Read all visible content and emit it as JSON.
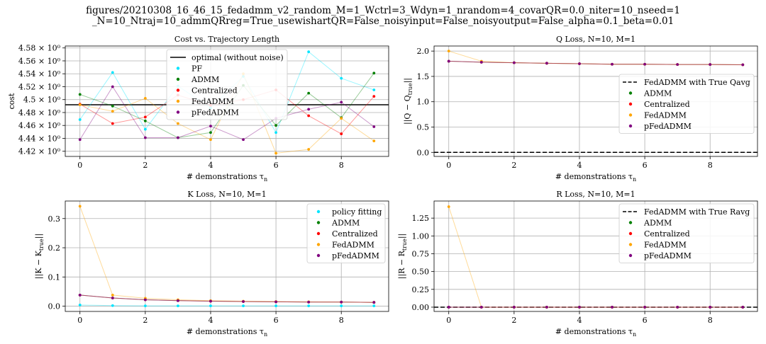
{
  "suptitle": {
    "line1": "figures/20210308_16_46_15_fedadmm_v2_random_M=1_Wctrl=3_Wdyn=1_nrandom=4_covarQR=0.0_niter=10_nseed=1",
    "line2": "_N=10_Ntraj=10_admmQRreg=True_usewishartQR=False_noisyinput=False_noisyoutput=False_alpha=0.1_beta=0.01"
  },
  "colors": {
    "PF": "#00e5ff",
    "ADMM": "#008000",
    "Centralized": "#ff0000",
    "FedADMM": "#ffa500",
    "pFedADMM": "#800080",
    "optimal": "#000000",
    "grid": "#b0b0b0"
  },
  "chart_data": [
    {
      "type": "line",
      "title": "Cost vs. Trajectory Length",
      "xlabel": "# demonstrations τn",
      "ylabel": "cost",
      "xlim": [
        -0.45,
        9.45
      ],
      "ylim": [
        4.412,
        4.583
      ],
      "xticks": [
        0,
        2,
        4,
        6,
        8
      ],
      "xtick_labels": [
        "0",
        "2",
        "4",
        "6",
        "8"
      ],
      "yticks": [
        4.42,
        4.44,
        4.46,
        4.48,
        4.5,
        4.52,
        4.54,
        4.56,
        4.58
      ],
      "ytick_labels": [
        "4.42 × 10⁰",
        "4.44 × 10⁰",
        "4.46 × 10⁰",
        "4.48 × 10⁰",
        "4.5 × 10⁰",
        "4.52 × 10⁰",
        "4.54 × 10⁰",
        "4.56 × 10⁰",
        "4.58 × 10⁰"
      ],
      "grid": true,
      "legend_position": "upper-center",
      "hline": {
        "y": 4.492,
        "name": "optimal (without noise)",
        "color_key": "optimal",
        "style": "solid"
      },
      "x": [
        0,
        1,
        2,
        3,
        4,
        5,
        6,
        7,
        8,
        9
      ],
      "series": [
        {
          "name": "PF",
          "color_key": "PF",
          "values": [
            4.469,
            4.542,
            4.454,
            4.521,
            4.487,
            4.536,
            4.449,
            4.574,
            4.533,
            4.515
          ]
        },
        {
          "name": "ADMM",
          "color_key": "ADMM",
          "values": [
            4.508,
            4.49,
            4.467,
            4.441,
            4.449,
            4.522,
            4.46,
            4.51,
            4.472,
            4.541
          ]
        },
        {
          "name": "Centralized",
          "color_key": "Centralized",
          "values": [
            4.493,
            4.463,
            4.473,
            4.507,
            4.491,
            4.5,
            4.515,
            4.475,
            4.447,
            4.505
          ]
        },
        {
          "name": "FedADMM",
          "color_key": "FedADMM",
          "values": [
            4.492,
            4.482,
            4.502,
            4.463,
            4.438,
            4.54,
            4.417,
            4.423,
            4.471,
            4.436
          ]
        },
        {
          "name": "pFedADMM",
          "color_key": "pFedADMM",
          "values": [
            4.438,
            4.52,
            4.441,
            4.441,
            4.459,
            4.438,
            4.471,
            4.485,
            4.496,
            4.458
          ]
        }
      ]
    },
    {
      "type": "line",
      "title": "Q Loss, N=10, M=1",
      "xlabel": "# demonstrations τn",
      "ylabel": "||Q − Qtrue||",
      "xlim": [
        -0.45,
        9.45
      ],
      "ylim": [
        -0.08,
        2.1
      ],
      "xticks": [
        0,
        2,
        4,
        6,
        8
      ],
      "xtick_labels": [
        "0",
        "2",
        "4",
        "6",
        "8"
      ],
      "yticks": [
        0,
        0.5,
        1,
        1.5,
        2
      ],
      "ytick_labels": [
        "0.0",
        "0.5",
        "1.0",
        "1.5",
        "2.0"
      ],
      "grid": true,
      "legend_position": "center-right",
      "hline": {
        "y": 0,
        "name": "FedADMM with True Qavg",
        "color_key": "optimal",
        "style": "dashed"
      },
      "x": [
        0,
        1,
        2,
        3,
        4,
        5,
        6,
        7,
        8,
        9
      ],
      "series": [
        {
          "name": "ADMM",
          "color_key": "ADMM",
          "values": [
            1.8,
            1.78,
            1.77,
            1.76,
            1.75,
            1.74,
            1.74,
            1.735,
            1.735,
            1.73
          ]
        },
        {
          "name": "Centralized",
          "color_key": "Centralized",
          "values": [
            1.8,
            1.78,
            1.77,
            1.76,
            1.75,
            1.74,
            1.74,
            1.735,
            1.735,
            1.73
          ]
        },
        {
          "name": "FedADMM",
          "color_key": "FedADMM",
          "values": [
            2.0,
            1.8,
            1.77,
            1.76,
            1.75,
            1.74,
            1.74,
            1.735,
            1.735,
            1.73
          ]
        },
        {
          "name": "pFedADMM",
          "color_key": "pFedADMM",
          "values": [
            1.8,
            1.78,
            1.77,
            1.76,
            1.75,
            1.74,
            1.74,
            1.735,
            1.735,
            1.73
          ]
        }
      ]
    },
    {
      "type": "line",
      "title": "K Loss, N=10, M=1",
      "xlabel": "# demonstrations τn",
      "ylabel": "||K − Ktrue||",
      "xlim": [
        -0.45,
        9.45
      ],
      "ylim": [
        -0.018,
        0.36
      ],
      "xticks": [
        0,
        2,
        4,
        6,
        8
      ],
      "xtick_labels": [
        "0",
        "2",
        "4",
        "6",
        "8"
      ],
      "yticks": [
        0,
        0.1,
        0.2,
        0.3
      ],
      "ytick_labels": [
        "0.0",
        "0.1",
        "0.2",
        "0.3"
      ],
      "grid": true,
      "legend_position": "upper-right",
      "x": [
        0,
        1,
        2,
        3,
        4,
        5,
        6,
        7,
        8,
        9
      ],
      "series": [
        {
          "name": "policy fitting",
          "color_key": "PF",
          "values": [
            0.004,
            0.002,
            0.001,
            0.001,
            0.001,
            0.001,
            0.001,
            0.001,
            0.001,
            0.001
          ]
        },
        {
          "name": "ADMM",
          "color_key": "ADMM",
          "values": [
            0.038,
            0.028,
            0.022,
            0.019,
            0.017,
            0.016,
            0.015,
            0.014,
            0.014,
            0.013
          ]
        },
        {
          "name": "Centralized",
          "color_key": "Centralized",
          "values": [
            0.038,
            0.028,
            0.022,
            0.019,
            0.017,
            0.016,
            0.015,
            0.014,
            0.014,
            0.013
          ]
        },
        {
          "name": "FedADMM",
          "color_key": "FedADMM",
          "values": [
            0.342,
            0.038,
            0.027,
            0.022,
            0.019,
            0.017,
            0.016,
            0.015,
            0.014,
            0.013
          ]
        },
        {
          "name": "pFedADMM",
          "color_key": "pFedADMM",
          "values": [
            0.038,
            0.028,
            0.022,
            0.019,
            0.017,
            0.016,
            0.015,
            0.014,
            0.014,
            0.013
          ]
        }
      ]
    },
    {
      "type": "line",
      "title": "R Loss, N=10, M=1",
      "xlabel": "# demonstrations τn",
      "ylabel": "||R − Rtrue||",
      "xlim": [
        -0.45,
        9.45
      ],
      "ylim": [
        -0.06,
        1.49
      ],
      "xticks": [
        0,
        2,
        4,
        6,
        8
      ],
      "xtick_labels": [
        "0",
        "2",
        "4",
        "6",
        "8"
      ],
      "yticks": [
        0,
        0.25,
        0.5,
        0.75,
        1,
        1.25
      ],
      "ytick_labels": [
        "0.00",
        "0.25",
        "0.50",
        "0.75",
        "1.00",
        "1.25"
      ],
      "grid": true,
      "legend_position": "upper-right",
      "hline": {
        "y": 0,
        "name": "FedADMM with True Ravg",
        "color_key": "optimal",
        "style": "dashed"
      },
      "x": [
        0,
        1,
        2,
        3,
        4,
        5,
        6,
        7,
        8,
        9
      ],
      "series": [
        {
          "name": "ADMM",
          "color_key": "ADMM",
          "values": [
            0,
            0,
            0,
            0,
            0,
            0,
            0,
            0,
            0,
            0
          ]
        },
        {
          "name": "Centralized",
          "color_key": "Centralized",
          "values": [
            0,
            0,
            0,
            0,
            0,
            0,
            0,
            0,
            0,
            0
          ]
        },
        {
          "name": "FedADMM",
          "color_key": "FedADMM",
          "values": [
            1.41,
            0,
            0,
            0,
            0,
            0,
            0,
            0,
            0,
            0
          ]
        },
        {
          "name": "pFedADMM",
          "color_key": "pFedADMM",
          "values": [
            0,
            0,
            0,
            0,
            0,
            0,
            0,
            0,
            0,
            0
          ]
        }
      ]
    }
  ]
}
